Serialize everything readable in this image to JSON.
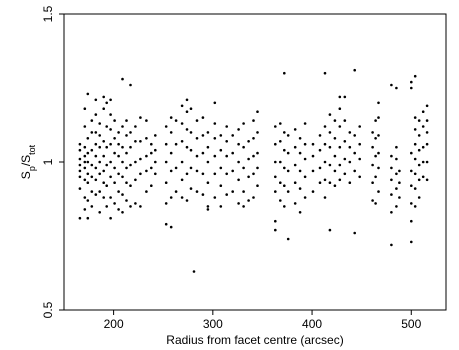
{
  "chart_data": {
    "type": "scatter",
    "xlabel": "Radius from facet centre (arcsec)",
    "ylabel": {
      "main": "S",
      "sub1": "p",
      "mid": "/S",
      "sub2": "tot"
    },
    "xlim": [
      150,
      535
    ],
    "ylim": [
      0.5,
      1.5
    ],
    "x_ticks": [
      200,
      300,
      400,
      500
    ],
    "x_tick_labels": [
      "200",
      "300",
      "400",
      "500"
    ],
    "y_ticks": [
      0.5,
      1,
      1.5
    ],
    "y_tick_labels": [
      "0.5",
      "1",
      "1.5"
    ],
    "grid": false,
    "columns": [
      {
        "x": 166,
        "ys": [
          0.81,
          0.91,
          0.95,
          0.97,
          0.99,
          1.01,
          1.04,
          1.06
        ]
      },
      {
        "x": 171,
        "ys": [
          0.84,
          0.88,
          0.94,
          0.98,
          1.0,
          1.02,
          1.05,
          1.12,
          1.18
        ]
      },
      {
        "x": 174,
        "ys": [
          0.81,
          0.87,
          0.93,
          0.96,
          1.0,
          1.03,
          1.08,
          1.23
        ]
      },
      {
        "x": 178,
        "ys": [
          0.85,
          0.9,
          0.95,
          0.99,
          1.04,
          1.1,
          1.14
        ]
      },
      {
        "x": 182,
        "ys": [
          0.89,
          0.94,
          0.98,
          1.02,
          1.06,
          1.1,
          1.16,
          1.21
        ]
      },
      {
        "x": 186,
        "ys": [
          0.83,
          0.9,
          0.96,
          1.0,
          1.05,
          1.09,
          1.13
        ]
      },
      {
        "x": 190,
        "ys": [
          0.88,
          0.93,
          0.97,
          1.02,
          1.07,
          1.18,
          1.22
        ]
      },
      {
        "x": 193,
        "ys": [
          0.85,
          0.92,
          0.99,
          1.05,
          1.12,
          1.2
        ]
      },
      {
        "x": 197,
        "ys": [
          0.81,
          0.88,
          0.95,
          1.0,
          1.06,
          1.11,
          1.16,
          1.21
        ]
      },
      {
        "x": 201,
        "ys": [
          0.86,
          0.93,
          0.98,
          1.03,
          1.08,
          1.14
        ]
      },
      {
        "x": 205,
        "ys": [
          0.84,
          0.9,
          0.96,
          1.02,
          1.06,
          1.1
        ]
      },
      {
        "x": 209,
        "ys": [
          0.83,
          0.89,
          0.95,
          1.0,
          1.05,
          1.12,
          1.28
        ]
      },
      {
        "x": 213,
        "ys": [
          0.87,
          0.93,
          0.98,
          1.03,
          1.09,
          1.14
        ]
      },
      {
        "x": 217,
        "ys": [
          0.85,
          0.92,
          0.99,
          1.05,
          1.1,
          1.26
        ]
      },
      {
        "x": 222,
        "ys": [
          0.86,
          0.94,
          1.0,
          1.07,
          1.12
        ]
      },
      {
        "x": 227,
        "ys": [
          0.85,
          0.96,
          1.01,
          1.07,
          1.15
        ]
      },
      {
        "x": 233,
        "ys": [
          0.9,
          0.97,
          1.02,
          1.08,
          1.14
        ]
      },
      {
        "x": 238,
        "ys": [
          0.92,
          0.98,
          1.03,
          1.06
        ]
      },
      {
        "x": 242,
        "ys": [
          0.96,
          1.0,
          1.04,
          1.09
        ]
      },
      {
        "x": 253,
        "ys": [
          0.79,
          0.86,
          0.93,
          1.0,
          1.06,
          1.12
        ]
      },
      {
        "x": 258,
        "ys": [
          0.78,
          0.88,
          0.97,
          1.03,
          1.1,
          1.15
        ]
      },
      {
        "x": 263,
        "ys": [
          0.9,
          0.98,
          1.06,
          1.14
        ]
      },
      {
        "x": 269,
        "ys": [
          0.88,
          0.94,
          1.0,
          1.07,
          1.13,
          1.19
        ]
      },
      {
        "x": 274,
        "ys": [
          0.87,
          0.96,
          1.05,
          1.11,
          1.17,
          1.21
        ]
      },
      {
        "x": 278,
        "ys": [
          0.91,
          0.98,
          1.04,
          1.1,
          1.18
        ]
      },
      {
        "x": 281,
        "ys": [
          0.63
        ]
      },
      {
        "x": 284,
        "ys": [
          0.9,
          0.97,
          1.02,
          1.08,
          1.14
        ]
      },
      {
        "x": 290,
        "ys": [
          0.89,
          0.96,
          1.03,
          1.09,
          1.15
        ]
      },
      {
        "x": 295,
        "ys": [
          0.84,
          0.85,
          0.93,
          1.0,
          1.05,
          1.1
        ]
      },
      {
        "x": 302,
        "ys": [
          0.88,
          0.96,
          1.02,
          1.08,
          1.13,
          1.2
        ]
      },
      {
        "x": 308,
        "ys": [
          0.85,
          0.92,
          0.98,
          1.04,
          1.09
        ]
      },
      {
        "x": 314,
        "ys": [
          0.89,
          0.96,
          1.02,
          1.07,
          1.12
        ]
      },
      {
        "x": 320,
        "ys": [
          0.9,
          0.97,
          1.03,
          1.09
        ]
      },
      {
        "x": 326,
        "ys": [
          0.86,
          0.94,
          1.0,
          1.06,
          1.11
        ]
      },
      {
        "x": 331,
        "ys": [
          0.85,
          0.9,
          0.98,
          1.05,
          1.13
        ]
      },
      {
        "x": 336,
        "ys": [
          0.87,
          0.95,
          1.01,
          1.07
        ]
      },
      {
        "x": 341,
        "ys": [
          0.88,
          0.96,
          1.02,
          1.08,
          1.14
        ]
      },
      {
        "x": 345,
        "ys": [
          0.92,
          0.98,
          1.03,
          1.1,
          1.17
        ]
      },
      {
        "x": 363,
        "ys": [
          0.77,
          0.8,
          0.9,
          0.95,
          1.0,
          1.06,
          1.12
        ]
      },
      {
        "x": 368,
        "ys": [
          0.87,
          0.93,
          1.0,
          1.07,
          1.13
        ]
      },
      {
        "x": 372,
        "ys": [
          0.85,
          0.92,
          0.98,
          1.04,
          1.1,
          1.3
        ]
      },
      {
        "x": 376,
        "ys": [
          0.74,
          0.9,
          0.97,
          1.03,
          1.09
        ]
      },
      {
        "x": 383,
        "ys": [
          0.86,
          0.93,
          0.99,
          1.05,
          1.11
        ]
      },
      {
        "x": 388,
        "ys": [
          0.83,
          0.91,
          0.97,
          1.03,
          1.08
        ]
      },
      {
        "x": 393,
        "ys": [
          0.88,
          0.95,
          1.01,
          1.06,
          1.13
        ]
      },
      {
        "x": 401,
        "ys": [
          0.9,
          0.97,
          1.02,
          1.06
        ]
      },
      {
        "x": 408,
        "ys": [
          0.93,
          0.98,
          1.04,
          1.09
        ]
      },
      {
        "x": 413,
        "ys": [
          0.88,
          0.94,
          1.0,
          1.06,
          1.12,
          1.3
        ]
      },
      {
        "x": 418,
        "ys": [
          0.77,
          0.93,
          0.99,
          1.05,
          1.1,
          1.16
        ]
      },
      {
        "x": 423,
        "ys": [
          0.92,
          0.97,
          1.02,
          1.08,
          1.14
        ]
      },
      {
        "x": 428,
        "ys": [
          0.94,
          0.99,
          1.05,
          1.12,
          1.18,
          1.22
        ]
      },
      {
        "x": 433,
        "ys": [
          0.96,
          1.01,
          1.07,
          1.14,
          1.22
        ]
      },
      {
        "x": 438,
        "ys": [
          0.93,
          1.0,
          1.05,
          1.1
        ]
      },
      {
        "x": 443,
        "ys": [
          0.76,
          0.97,
          1.03,
          1.09,
          1.31
        ]
      },
      {
        "x": 448,
        "ys": [
          0.95,
          1.01,
          1.06,
          1.12
        ]
      },
      {
        "x": 461,
        "ys": [
          0.87,
          0.93,
          0.99,
          1.05,
          1.1
        ]
      },
      {
        "x": 464,
        "ys": [
          0.86,
          0.95,
          1.02,
          1.08,
          1.14
        ]
      },
      {
        "x": 467,
        "ys": [
          0.9,
          0.98,
          1.03,
          1.09,
          1.15,
          1.2
        ]
      },
      {
        "x": 480,
        "ys": [
          0.72,
          0.83,
          0.89,
          0.94,
          0.98,
          1.02,
          1.26
        ]
      },
      {
        "x": 485,
        "ys": [
          0.85,
          0.91,
          0.96,
          1.01,
          1.05,
          1.25
        ]
      },
      {
        "x": 488,
        "ys": [
          0.88,
          0.93,
          0.97
        ]
      },
      {
        "x": 500,
        "ys": [
          0.73,
          0.8,
          0.86,
          0.92,
          0.97,
          1.03,
          1.25,
          1.27
        ]
      },
      {
        "x": 504,
        "ys": [
          0.85,
          0.91,
          0.96,
          1.01,
          1.06,
          1.11,
          1.15,
          1.29
        ]
      },
      {
        "x": 508,
        "ys": [
          0.88,
          0.94,
          0.99,
          1.04,
          1.09,
          1.14
        ]
      },
      {
        "x": 512,
        "ys": [
          0.95,
          1.0,
          1.05,
          1.12,
          1.17
        ]
      },
      {
        "x": 516,
        "ys": [
          0.94,
          1.0,
          1.06,
          1.1,
          1.14,
          1.19
        ]
      }
    ]
  }
}
